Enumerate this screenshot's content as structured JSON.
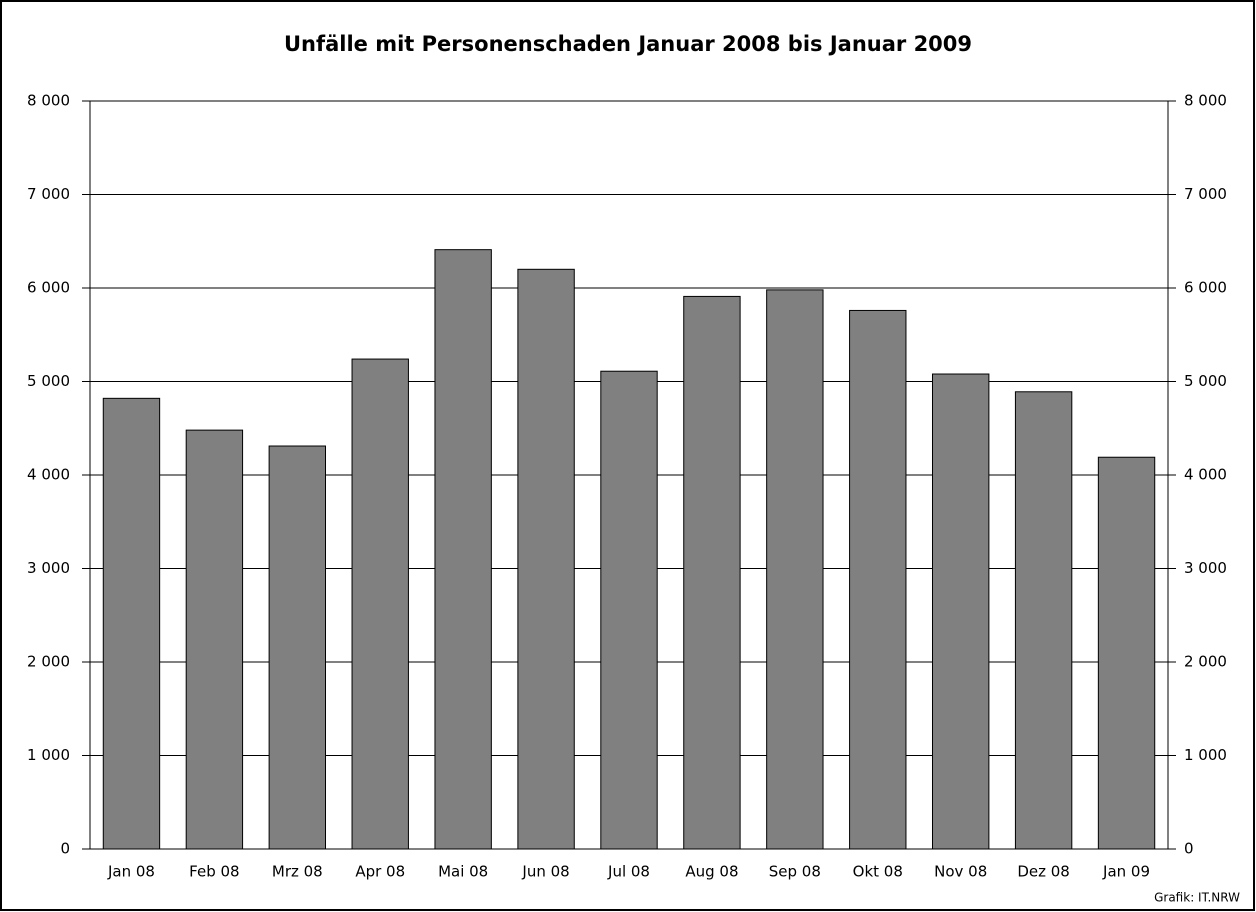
{
  "chart_data": {
    "type": "bar",
    "title": "Unfälle mit Personenschaden Januar 2008 bis Januar 2009",
    "categories": [
      "Jan 08",
      "Feb 08",
      "Mrz 08",
      "Apr 08",
      "Mai 08",
      "Jun 08",
      "Jul 08",
      "Aug 08",
      "Sep 08",
      "Okt 08",
      "Nov 08",
      "Dez 08",
      "Jan 09"
    ],
    "values": [
      4820,
      4480,
      4310,
      5240,
      6410,
      6200,
      5110,
      5910,
      5980,
      5760,
      5080,
      4890,
      4190
    ],
    "color": "#808080",
    "ylim": [
      0,
      8000
    ],
    "yticks": [
      0,
      {
        "value": 1000,
        "label": "1 000"
      },
      {
        "value": 2000,
        "label": "2 000"
      },
      {
        "value": 3000,
        "label": "3 000"
      },
      {
        "value": 4000,
        "label": "4 000"
      },
      {
        "value": 5000,
        "label": "5 000"
      },
      {
        "value": 6000,
        "label": "6 000"
      },
      {
        "value": 7000,
        "label": "7 000"
      },
      {
        "value": 8000,
        "label": "8 000"
      }
    ],
    "y2lim": [
      0,
      8000
    ],
    "y2ticks": [
      0,
      {
        "value": 1000,
        "label": "1 000"
      },
      {
        "value": 2000,
        "label": "2 000"
      },
      {
        "value": 3000,
        "label": "3 000"
      },
      {
        "value": 4000,
        "label": "4 000"
      },
      {
        "value": 5000,
        "label": "5 000"
      },
      {
        "value": 6000,
        "label": "6 000"
      },
      {
        "value": 7000,
        "label": "7 000"
      },
      {
        "value": 8000,
        "label": "8 000"
      }
    ],
    "grid": true,
    "source": "Grafik: IT.NRW"
  }
}
